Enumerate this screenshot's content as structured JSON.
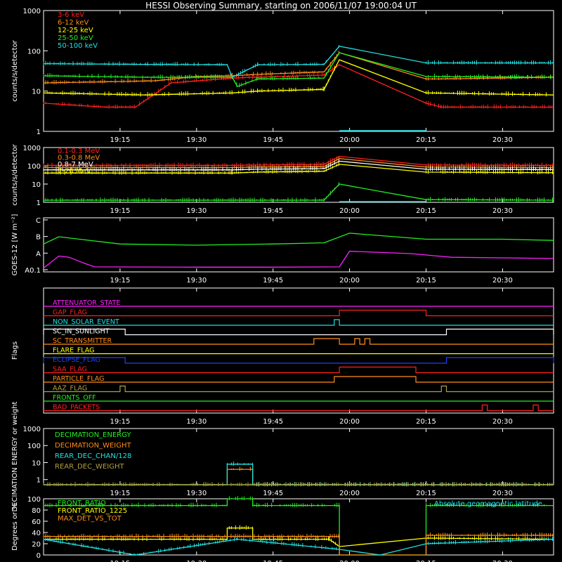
{
  "title": "HESSI Observing Summary, starting on 2006/11/07 19:00:04 UT",
  "x_ticks": [
    "19:15",
    "19:30",
    "19:45",
    "20:00",
    "20:15",
    "20:30"
  ],
  "colors": {
    "red": "#ff2020",
    "orange": "#ff8c1a",
    "yellow": "#ffff00",
    "green": "#22ee22",
    "cyan": "#20e0e0",
    "magenta": "#ff20ff",
    "blue": "#2040ff",
    "olive": "#b0a040",
    "white": "#ffffff"
  },
  "chart_data": [
    {
      "id": "count-rate-low",
      "type": "line",
      "y_scale": "log",
      "ylabel": "counts/s/detector",
      "y_ticks": [
        "1000",
        "100",
        "10",
        "1"
      ],
      "ylim": [
        1,
        1000
      ],
      "xlim": [
        "19:00",
        "20:40"
      ],
      "gaps": [
        [
          "19:58",
          "20:15"
        ]
      ],
      "series": [
        {
          "name": "3-6 keV",
          "color": "red",
          "x": [
            "19:00",
            "19:12",
            "19:18",
            "19:25",
            "19:37",
            "19:41",
            "19:55",
            "19:58",
            "20:15",
            "20:18",
            "20:40"
          ],
          "y": [
            5,
            4,
            4,
            16,
            21,
            22,
            25,
            45,
            5,
            4,
            4
          ]
        },
        {
          "name": "6-12 keV",
          "color": "orange",
          "x": [
            "19:00",
            "19:12",
            "19:22",
            "19:30",
            "19:37",
            "19:42",
            "19:55",
            "19:58",
            "20:15",
            "20:18",
            "20:40"
          ],
          "y": [
            16,
            17,
            18,
            23,
            24,
            26,
            30,
            90,
            20,
            20,
            22
          ]
        },
        {
          "name": "12-25 keV",
          "color": "yellow",
          "x": [
            "19:00",
            "19:20",
            "19:37",
            "19:42",
            "19:55",
            "19:58",
            "20:15",
            "20:40"
          ],
          "y": [
            9,
            8,
            9,
            10,
            11,
            60,
            9,
            8
          ]
        },
        {
          "name": "25-50 keV",
          "color": "green",
          "x": [
            "19:00",
            "19:20",
            "19:37",
            "19:38",
            "19:42",
            "19:55",
            "19:58",
            "20:15",
            "20:40"
          ],
          "y": [
            24,
            22,
            22,
            13,
            20,
            21,
            90,
            23,
            22
          ]
        },
        {
          "name": "50-100 keV",
          "color": "cyan",
          "x": [
            "19:00",
            "19:20",
            "19:36",
            "19:37",
            "19:42",
            "19:55",
            "19:58",
            "20:15",
            "20:40"
          ],
          "y": [
            48,
            46,
            45,
            22,
            45,
            46,
            130,
            50,
            50
          ]
        }
      ]
    },
    {
      "id": "count-rate-high",
      "type": "line",
      "y_scale": "log",
      "ylabel": "counts/s/detector",
      "y_ticks": [
        "1000",
        "100",
        "10",
        "1"
      ],
      "ylim": [
        1,
        1000
      ],
      "xlim": [
        "19:00",
        "20:40"
      ],
      "gaps": [
        [
          "19:58",
          "20:15"
        ]
      ],
      "series": [
        {
          "name": "0.1-0.3 MeV",
          "color": "red",
          "x": [
            "19:00",
            "19:37",
            "19:42",
            "19:55",
            "19:58",
            "20:15",
            "20:40"
          ],
          "y": [
            105,
            105,
            110,
            120,
            330,
            110,
            105
          ]
        },
        {
          "name": "0.3-0.8 MeV",
          "color": "orange",
          "x": [
            "19:00",
            "19:37",
            "19:42",
            "19:55",
            "19:58",
            "20:15",
            "20:40"
          ],
          "y": [
            80,
            80,
            85,
            90,
            250,
            85,
            80
          ]
        },
        {
          "name": "0.8-7 MeV",
          "color": "white",
          "x": [
            "19:00",
            "19:37",
            "19:42",
            "19:55",
            "19:58",
            "20:15",
            "20:40"
          ],
          "y": [
            60,
            60,
            65,
            70,
            180,
            65,
            62
          ]
        },
        {
          "name": "7-20 MeV",
          "color": "yellow",
          "x": [
            "19:00",
            "19:37",
            "19:42",
            "19:55",
            "19:58",
            "20:15",
            "20:40"
          ],
          "y": [
            40,
            40,
            45,
            50,
            120,
            45,
            42
          ]
        },
        {
          "name": "",
          "color": "green",
          "x": [
            "19:00",
            "19:55",
            "19:58",
            "20:15",
            "20:40"
          ],
          "y": [
            1.3,
            1.3,
            10,
            1.4,
            1.3
          ]
        }
      ]
    },
    {
      "id": "goes",
      "type": "line",
      "y_scale": "log",
      "ylabel": "GOES-12 [W m⁻²]",
      "y_ticks": [
        "C",
        "B",
        "A",
        "A0.1"
      ],
      "xlim": [
        "19:00",
        "20:40"
      ],
      "series": [
        {
          "name": "",
          "color": "green",
          "x": [
            "19:00",
            "19:03",
            "19:15",
            "19:30",
            "19:45",
            "19:55",
            "20:00",
            "20:15",
            "20:30",
            "20:40"
          ],
          "y": [
            1.0,
            1.3,
            1.0,
            0.95,
            1.0,
            1.05,
            1.45,
            1.2,
            1.2,
            1.15
          ]
        },
        {
          "name": "",
          "color": "magenta",
          "x": [
            "19:00",
            "19:03",
            "19:05",
            "19:08",
            "19:10",
            "19:30",
            "19:45",
            "19:58",
            "20:00",
            "20:12",
            "20:20",
            "20:40"
          ],
          "y": [
            0.0,
            0.5,
            0.45,
            0.2,
            0.05,
            0.04,
            0.04,
            0.05,
            0.7,
            0.6,
            0.45,
            0.4
          ]
        }
      ]
    },
    {
      "id": "flags",
      "type": "line",
      "ylabel": "Flags",
      "xlim": [
        "19:00",
        "20:40"
      ],
      "series": [
        {
          "name": "ATTENUATOR_STATE",
          "color": "magenta",
          "steps": []
        },
        {
          "name": "GAP_FLAG",
          "color": "red",
          "steps": [
            [
              "19:58",
              "20:15"
            ]
          ]
        },
        {
          "name": "NON_SOLAR_EVENT",
          "color": "cyan",
          "steps": [
            [
              "19:57",
              "19:58"
            ]
          ]
        },
        {
          "name": "SC_IN_SUNLIGHT",
          "color": "white",
          "steps": [
            [
              "19:00",
              "19:16"
            ],
            [
              "20:19",
              "20:40"
            ]
          ]
        },
        {
          "name": "SC_TRANSMITTER",
          "color": "orange",
          "steps": [
            [
              "19:53",
              "19:58"
            ],
            [
              "20:01",
              "20:02"
            ],
            [
              "20:03",
              "20:04"
            ]
          ]
        },
        {
          "name": "FLARE_FLAG",
          "color": "yellow",
          "steps": []
        },
        {
          "name": "ECLIPSE_FLAG",
          "color": "blue",
          "steps": [
            [
              "19:00",
              "19:16"
            ],
            [
              "20:19",
              "20:40"
            ]
          ]
        },
        {
          "name": "SAA_FLAG",
          "color": "red",
          "steps": [
            [
              "19:58",
              "20:13"
            ]
          ]
        },
        {
          "name": "PARTICLE_FLAG",
          "color": "orange",
          "steps": [
            [
              "19:57",
              "20:13"
            ]
          ]
        },
        {
          "name": "AAZ_FLAG",
          "color": "olive",
          "steps": [
            [
              "19:15",
              "19:16"
            ],
            [
              "20:18",
              "20:19"
            ]
          ]
        },
        {
          "name": "FRONTS_OFF",
          "color": "green",
          "steps": []
        },
        {
          "name": "BAD_PACKETS",
          "color": "red",
          "steps": [
            [
              "20:26",
              "20:27"
            ],
            [
              "20:36",
              "20:37"
            ]
          ]
        }
      ]
    },
    {
      "id": "decimation",
      "type": "line",
      "y_scale": "log",
      "ylabel": "DECIMATION ENERGY or weight",
      "y_ticks": [
        "1000",
        "100",
        "10",
        "1"
      ],
      "ylim": [
        0.5,
        1000
      ],
      "xlim": [
        "19:00",
        "20:40"
      ],
      "series": [
        {
          "name": "DECIMATION_ENERGY",
          "color": "green",
          "x": [
            "19:00",
            "20:40"
          ],
          "y": [
            0.5,
            0.5
          ]
        },
        {
          "name": "DECIMATION_WEIGHT",
          "color": "orange",
          "x": [
            "19:00",
            "19:36",
            "19:36",
            "19:41",
            "19:41",
            "20:40"
          ],
          "y": [
            0.5,
            0.5,
            4,
            4,
            0.5,
            0.5
          ]
        },
        {
          "name": "REAR_DEC_CHAN/128",
          "color": "cyan",
          "x": [
            "19:00",
            "19:36",
            "19:36",
            "19:41",
            "19:41",
            "20:40"
          ],
          "y": [
            0.5,
            0.5,
            8,
            8,
            0.5,
            0.5
          ]
        },
        {
          "name": "REAR_DEC_WEIGHT",
          "color": "olive",
          "x": [
            "19:00",
            "20:40"
          ],
          "y": [
            0.5,
            0.5
          ]
        }
      ]
    },
    {
      "id": "front-ratio",
      "type": "line",
      "ylabel": "Degrees or %",
      "y_ticks": [
        "100",
        "80",
        "60",
        "40",
        "20",
        "0"
      ],
      "ylim": [
        0,
        100
      ],
      "xlim": [
        "19:00",
        "20:40"
      ],
      "annotation": "Absolute geomagnetic latitude",
      "series": [
        {
          "name": "FRONT_RATIO",
          "color": "green",
          "x": [
            "19:00",
            "19:36",
            "19:36",
            "19:41",
            "19:41",
            "19:58",
            "19:58",
            "20:15",
            "20:15",
            "20:40"
          ],
          "y": [
            88,
            88,
            100,
            100,
            88,
            88,
            0,
            0,
            88,
            88
          ]
        },
        {
          "name": "FRONT_RATIO_1225",
          "color": "yellow",
          "x": [
            "19:00",
            "19:36",
            "19:36",
            "19:41",
            "19:41",
            "19:56",
            "19:58",
            "20:15",
            "20:40"
          ],
          "y": [
            28,
            28,
            48,
            48,
            28,
            28,
            15,
            30,
            28
          ]
        },
        {
          "name": "MAX_DET_VS_TOT",
          "color": "orange",
          "x": [
            "19:00",
            "19:58",
            "19:58",
            "20:15",
            "20:15",
            "20:40"
          ],
          "y": [
            33,
            33,
            0,
            0,
            35,
            35
          ]
        },
        {
          "name": "",
          "color": "cyan",
          "x": [
            "19:00",
            "19:18",
            "19:38",
            "19:58",
            "20:06",
            "20:15",
            "20:40"
          ],
          "y": [
            28,
            0,
            28,
            10,
            0,
            20,
            28
          ]
        }
      ]
    }
  ]
}
